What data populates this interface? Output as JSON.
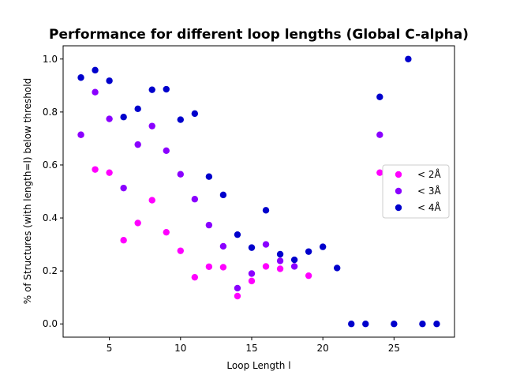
{
  "chart_data": {
    "type": "scatter",
    "title": "Performance for different loop lengths (Global C-alpha)",
    "xlabel": "Loop Length l",
    "ylabel": "% of Structures (with length=l) below threshold",
    "xlim": [
      1.75,
      29.25
    ],
    "ylim": [
      -0.05,
      1.05
    ],
    "xticks": [
      5,
      10,
      15,
      20,
      25
    ],
    "yticks": [
      0.0,
      0.2,
      0.4,
      0.6,
      0.8,
      1.0
    ],
    "xtick_labels": [
      "5",
      "10",
      "15",
      "20",
      "25"
    ],
    "ytick_labels": [
      "0.0",
      "0.2",
      "0.4",
      "0.6",
      "0.8",
      "1.0"
    ],
    "grid": false,
    "legend_position": "center-right",
    "series": [
      {
        "name": "< 2Å",
        "color": "#ff00ff",
        "points": [
          [
            3,
            0.714
          ],
          [
            4,
            0.583
          ],
          [
            5,
            0.571
          ],
          [
            6,
            0.316
          ],
          [
            7,
            0.381
          ],
          [
            8,
            0.467
          ],
          [
            9,
            0.346
          ],
          [
            10,
            0.276
          ],
          [
            11,
            0.176
          ],
          [
            12,
            0.216
          ],
          [
            13,
            0.214
          ],
          [
            14,
            0.105
          ],
          [
            15,
            0.162
          ],
          [
            16,
            0.217
          ],
          [
            17,
            0.208
          ],
          [
            19,
            0.182
          ],
          [
            24,
            0.571
          ]
        ]
      },
      {
        "name": "< 3Å",
        "color": "#8a00ff",
        "points": [
          [
            3,
            0.714
          ],
          [
            4,
            0.875
          ],
          [
            5,
            0.774
          ],
          [
            6,
            0.513
          ],
          [
            7,
            0.677
          ],
          [
            8,
            0.747
          ],
          [
            9,
            0.654
          ],
          [
            10,
            0.565
          ],
          [
            11,
            0.471
          ],
          [
            12,
            0.373
          ],
          [
            13,
            0.293
          ],
          [
            14,
            0.135
          ],
          [
            15,
            0.19
          ],
          [
            16,
            0.3
          ],
          [
            17,
            0.238
          ],
          [
            18,
            0.217
          ],
          [
            24,
            0.714
          ]
        ]
      },
      {
        "name": "< 4Å",
        "color": "#0000cc",
        "points": [
          [
            3,
            0.93
          ],
          [
            4,
            0.958
          ],
          [
            5,
            0.918
          ],
          [
            6,
            0.781
          ],
          [
            7,
            0.812
          ],
          [
            8,
            0.884
          ],
          [
            9,
            0.886
          ],
          [
            10,
            0.771
          ],
          [
            11,
            0.794
          ],
          [
            12,
            0.556
          ],
          [
            13,
            0.487
          ],
          [
            14,
            0.337
          ],
          [
            15,
            0.288
          ],
          [
            16,
            0.429
          ],
          [
            17,
            0.263
          ],
          [
            18,
            0.242
          ],
          [
            19,
            0.273
          ],
          [
            20,
            0.291
          ],
          [
            21,
            0.211
          ],
          [
            22,
            0.0
          ],
          [
            23,
            0.0
          ],
          [
            24,
            0.857
          ],
          [
            25,
            0.0
          ],
          [
            26,
            1.0
          ],
          [
            27,
            0.0
          ],
          [
            28,
            0.0
          ]
        ]
      }
    ]
  }
}
